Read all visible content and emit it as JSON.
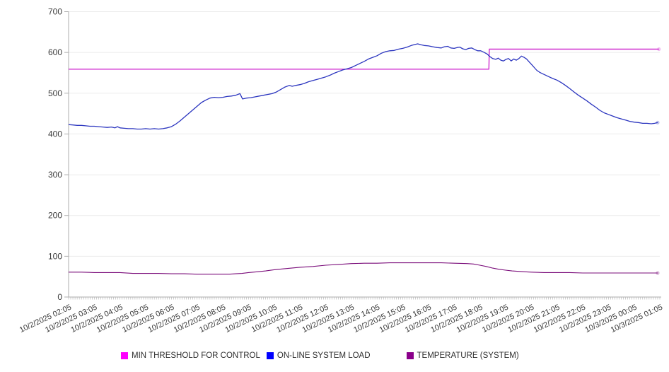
{
  "legend": {
    "items": [
      {
        "label": "MIN THRESHOLD FOR CONTROL",
        "color": "#ff00ff"
      },
      {
        "label": "ON-LINE SYSTEM LOAD",
        "color": "#0000ff"
      },
      {
        "label": "TEMPERATURE (SYSTEM)",
        "color": "#8b008b"
      }
    ]
  },
  "chart_data": {
    "type": "line",
    "title": "",
    "grid": "horizontal",
    "legend_position": "bottom",
    "x_axis": {
      "labels": [
        "10/2/2025 02:05",
        "10/2/2025 03:05",
        "10/2/2025 04:05",
        "10/2/2025 05:05",
        "10/2/2025 06:05",
        "10/2/2025 07:05",
        "10/2/2025 08:05",
        "10/2/2025 09:05",
        "10/2/2025 10:05",
        "10/2/2025 11:05",
        "10/2/2025 12:05",
        "10/2/2025 13:05",
        "10/2/2025 14:05",
        "10/2/2025 15:05",
        "10/2/2025 16:05",
        "10/2/2025 17:05",
        "10/2/2025 18:05",
        "10/2/2025 19:05",
        "10/2/2025 20:05",
        "10/2/2025 21:05",
        "10/2/2025 22:05",
        "10/2/2025 23:05",
        "10/3/2025 00:05",
        "10/3/2025 01:05"
      ],
      "label_interval_minutes": 60,
      "minor_tick_minutes": 5,
      "t_max_minutes": 1380
    },
    "y_axis": {
      "min": 0,
      "max": 700,
      "ticks": [
        0,
        100,
        200,
        300,
        400,
        500,
        600,
        700
      ]
    },
    "series": [
      {
        "name": "MIN THRESHOLD FOR CONTROL",
        "color": "#d02ed0",
        "width": 1.4,
        "points": [
          [
            0,
            559
          ],
          [
            981,
            559
          ],
          [
            982,
            608
          ],
          [
            1378,
            608
          ]
        ]
      },
      {
        "name": "ON-LINE SYSTEM LOAD",
        "color": "#2b35bf",
        "width": 1.3,
        "points": [
          [
            0,
            423
          ],
          [
            10,
            422
          ],
          [
            20,
            421
          ],
          [
            30,
            421
          ],
          [
            40,
            420
          ],
          [
            50,
            419
          ],
          [
            60,
            419
          ],
          [
            70,
            418
          ],
          [
            80,
            417
          ],
          [
            90,
            416
          ],
          [
            100,
            417
          ],
          [
            108,
            415
          ],
          [
            114,
            418
          ],
          [
            120,
            415
          ],
          [
            130,
            414
          ],
          [
            140,
            413
          ],
          [
            150,
            413
          ],
          [
            160,
            412
          ],
          [
            170,
            412
          ],
          [
            180,
            413
          ],
          [
            190,
            412
          ],
          [
            200,
            413
          ],
          [
            210,
            412
          ],
          [
            220,
            413
          ],
          [
            230,
            415
          ],
          [
            240,
            418
          ],
          [
            250,
            424
          ],
          [
            260,
            432
          ],
          [
            270,
            441
          ],
          [
            280,
            450
          ],
          [
            290,
            459
          ],
          [
            300,
            468
          ],
          [
            310,
            477
          ],
          [
            320,
            483
          ],
          [
            330,
            488
          ],
          [
            340,
            490
          ],
          [
            350,
            489
          ],
          [
            360,
            490
          ],
          [
            370,
            492
          ],
          [
            380,
            493
          ],
          [
            390,
            495
          ],
          [
            400,
            499
          ],
          [
            406,
            486
          ],
          [
            415,
            488
          ],
          [
            425,
            489
          ],
          [
            435,
            491
          ],
          [
            445,
            493
          ],
          [
            455,
            495
          ],
          [
            465,
            497
          ],
          [
            475,
            499
          ],
          [
            485,
            503
          ],
          [
            495,
            509
          ],
          [
            505,
            515
          ],
          [
            515,
            519
          ],
          [
            522,
            517
          ],
          [
            530,
            519
          ],
          [
            540,
            521
          ],
          [
            550,
            524
          ],
          [
            560,
            528
          ],
          [
            570,
            531
          ],
          [
            580,
            534
          ],
          [
            590,
            537
          ],
          [
            600,
            540
          ],
          [
            610,
            544
          ],
          [
            620,
            549
          ],
          [
            630,
            553
          ],
          [
            640,
            557
          ],
          [
            650,
            560
          ],
          [
            660,
            563
          ],
          [
            670,
            568
          ],
          [
            680,
            573
          ],
          [
            690,
            578
          ],
          [
            700,
            584
          ],
          [
            710,
            588
          ],
          [
            720,
            592
          ],
          [
            730,
            598
          ],
          [
            740,
            602
          ],
          [
            750,
            604
          ],
          [
            760,
            605
          ],
          [
            770,
            608
          ],
          [
            780,
            610
          ],
          [
            790,
            613
          ],
          [
            800,
            617
          ],
          [
            810,
            620
          ],
          [
            815,
            621
          ],
          [
            822,
            619
          ],
          [
            830,
            617
          ],
          [
            840,
            616
          ],
          [
            850,
            614
          ],
          [
            860,
            612
          ],
          [
            870,
            611
          ],
          [
            877,
            614
          ],
          [
            885,
            615
          ],
          [
            892,
            611
          ],
          [
            900,
            610
          ],
          [
            907,
            612
          ],
          [
            913,
            613
          ],
          [
            920,
            609
          ],
          [
            927,
            607
          ],
          [
            934,
            610
          ],
          [
            941,
            611
          ],
          [
            948,
            607
          ],
          [
            955,
            604
          ],
          [
            962,
            604
          ],
          [
            970,
            600
          ],
          [
            977,
            596
          ],
          [
            983,
            590
          ],
          [
            990,
            585
          ],
          [
            997,
            583
          ],
          [
            1003,
            586
          ],
          [
            1009,
            581
          ],
          [
            1015,
            579
          ],
          [
            1021,
            583
          ],
          [
            1027,
            585
          ],
          [
            1033,
            579
          ],
          [
            1039,
            584
          ],
          [
            1045,
            581
          ],
          [
            1051,
            585
          ],
          [
            1057,
            591
          ],
          [
            1063,
            588
          ],
          [
            1069,
            584
          ],
          [
            1075,
            577
          ],
          [
            1081,
            570
          ],
          [
            1087,
            563
          ],
          [
            1093,
            556
          ],
          [
            1100,
            551
          ],
          [
            1110,
            546
          ],
          [
            1120,
            541
          ],
          [
            1130,
            536
          ],
          [
            1140,
            532
          ],
          [
            1150,
            526
          ],
          [
            1160,
            519
          ],
          [
            1170,
            511
          ],
          [
            1180,
            503
          ],
          [
            1190,
            495
          ],
          [
            1200,
            488
          ],
          [
            1210,
            481
          ],
          [
            1220,
            473
          ],
          [
            1230,
            466
          ],
          [
            1240,
            458
          ],
          [
            1250,
            452
          ],
          [
            1260,
            448
          ],
          [
            1270,
            444
          ],
          [
            1280,
            440
          ],
          [
            1290,
            437
          ],
          [
            1300,
            434
          ],
          [
            1310,
            431
          ],
          [
            1320,
            429
          ],
          [
            1330,
            428
          ],
          [
            1340,
            426
          ],
          [
            1350,
            426
          ],
          [
            1360,
            425
          ],
          [
            1368,
            426
          ],
          [
            1375,
            428
          ]
        ]
      },
      {
        "name": "TEMPERATURE (SYSTEM)",
        "color": "#7a0c7a",
        "width": 1.1,
        "points": [
          [
            0,
            61
          ],
          [
            30,
            61
          ],
          [
            60,
            60
          ],
          [
            90,
            60
          ],
          [
            120,
            60
          ],
          [
            150,
            58
          ],
          [
            180,
            58
          ],
          [
            210,
            58
          ],
          [
            240,
            57
          ],
          [
            270,
            57
          ],
          [
            300,
            56
          ],
          [
            330,
            56
          ],
          [
            355,
            56
          ],
          [
            375,
            56
          ],
          [
            390,
            57
          ],
          [
            405,
            58
          ],
          [
            420,
            60
          ],
          [
            440,
            62
          ],
          [
            460,
            64
          ],
          [
            480,
            67
          ],
          [
            500,
            69
          ],
          [
            520,
            71
          ],
          [
            540,
            73
          ],
          [
            570,
            75
          ],
          [
            600,
            78
          ],
          [
            630,
            80
          ],
          [
            660,
            82
          ],
          [
            690,
            83
          ],
          [
            720,
            83
          ],
          [
            750,
            84
          ],
          [
            780,
            84
          ],
          [
            810,
            84
          ],
          [
            840,
            84
          ],
          [
            870,
            84
          ],
          [
            900,
            83
          ],
          [
            930,
            82
          ],
          [
            945,
            81
          ],
          [
            960,
            78
          ],
          [
            975,
            75
          ],
          [
            990,
            71
          ],
          [
            1005,
            68
          ],
          [
            1020,
            66
          ],
          [
            1035,
            64
          ],
          [
            1050,
            63
          ],
          [
            1065,
            62
          ],
          [
            1080,
            61
          ],
          [
            1110,
            60
          ],
          [
            1140,
            60
          ],
          [
            1170,
            60
          ],
          [
            1200,
            59
          ],
          [
            1230,
            59
          ],
          [
            1260,
            59
          ],
          [
            1290,
            59
          ],
          [
            1320,
            59
          ],
          [
            1350,
            59
          ],
          [
            1375,
            59
          ]
        ]
      }
    ],
    "colors": {
      "grid": "#ebebeb",
      "axis": "#aeaeae",
      "tick_text": "#3a3a3a"
    }
  }
}
